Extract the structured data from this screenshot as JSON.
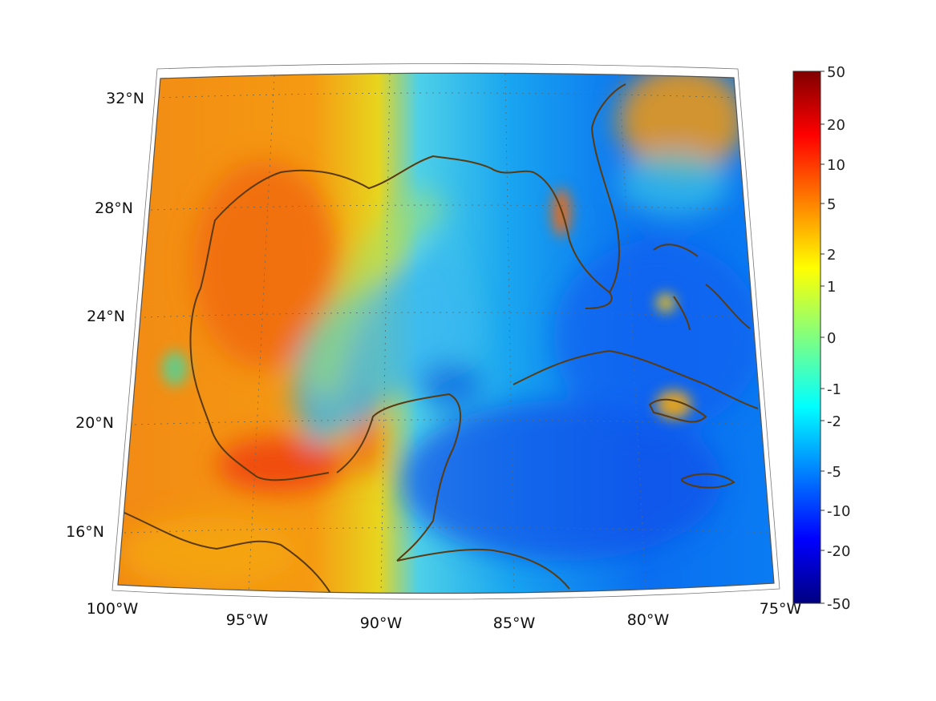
{
  "map": {
    "lat_labels": [
      "32°N",
      "28°N",
      "24°N",
      "20°N",
      "16°N"
    ],
    "lon_labels": [
      "100°W",
      "95°W",
      "90°W",
      "85°W",
      "80°W",
      "75°W"
    ],
    "graticule": "dotted",
    "coastline_color": "#5a3a10"
  },
  "colorbar": {
    "colormap": "jet",
    "ticks": [
      "50",
      "20",
      "10",
      "5",
      "2",
      "1",
      "0",
      "-1",
      "-2",
      "-5",
      "-10",
      "-20",
      "-50"
    ],
    "min": -50,
    "max": 50
  }
}
